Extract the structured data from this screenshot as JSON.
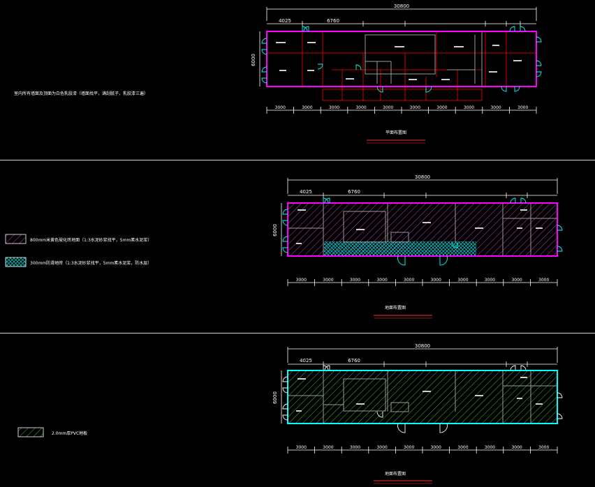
{
  "colors": {
    "background": "#000000",
    "wall": "#ff00ff",
    "dimension": "#ffffff",
    "door": "#00ffff",
    "interior": "#ff0000",
    "gray": "#9a9a9a",
    "hatch_purple": "#c040c0",
    "hatch_cyan": "#00c8c8",
    "hatch_green": "#40c040",
    "underline": "#ff3030",
    "separator": "#cfcfcf"
  },
  "plans": [
    {
      "id": "plan-1",
      "overall_dim": "30800",
      "top_dims": [
        "4025",
        "6760"
      ],
      "left_dim": "6000",
      "bottom_dims": [
        "3000",
        "3000",
        "3000",
        "3000",
        "3000",
        "3000",
        "3000",
        "3000",
        "3000",
        "3000"
      ],
      "title": "平面布置图"
    },
    {
      "id": "plan-2",
      "overall_dim": "30800",
      "top_dims": [
        "4025",
        "6760"
      ],
      "left_dim": "6000",
      "bottom_dims": [
        "3000",
        "3000",
        "3000",
        "3000",
        "3000",
        "3000",
        "3000",
        "3000",
        "3000",
        "3000"
      ],
      "title": "地面布置图"
    },
    {
      "id": "plan-3",
      "overall_dim": "30800",
      "top_dims": [
        "4025",
        "6760"
      ],
      "left_dim": "6000",
      "bottom_dims": [
        "3000",
        "3000",
        "3000",
        "3000",
        "3000",
        "3000",
        "3000",
        "3000",
        "3000",
        "3000"
      ],
      "title": "地面布置图"
    }
  ],
  "notes": {
    "plan1": "室内所有墙面及顶面为白色乳胶漆（墙面找平，满刮腻子，乳胶漆三遍）"
  },
  "legends": {
    "plan2": [
      {
        "swatch": "purple",
        "text": "800mm米黄色玻化砖地面（1:3水泥砂浆找平，5mm素水泥浆）"
      },
      {
        "swatch": "cyan",
        "text": "300mm防滑地砖（1:3水泥砂浆找平，5mm素水泥浆，防水层）"
      }
    ],
    "plan3": [
      {
        "swatch": "green",
        "text": "2.0mm厚PVC地板"
      }
    ]
  }
}
